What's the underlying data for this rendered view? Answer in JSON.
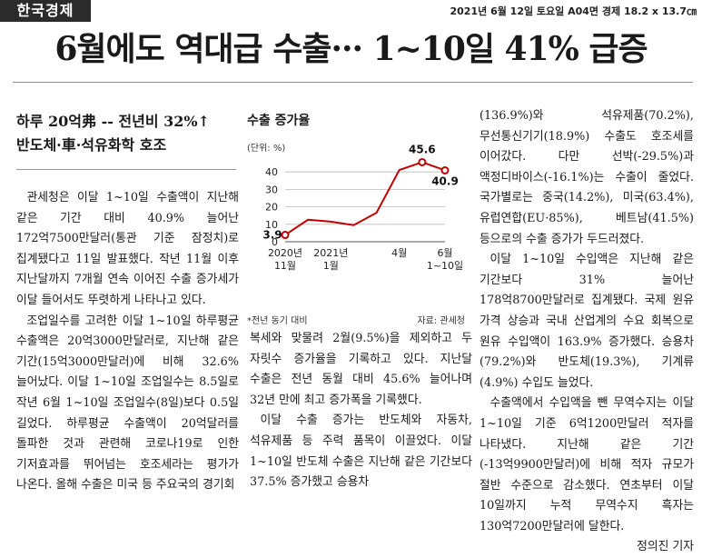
{
  "masthead": "한국경제",
  "meta": "2021년 6월 12일 토요일 A04면 경제 18.2 x 13.7㎝",
  "headline": "6월에도 역대급 수출··· 1~10일 41% 급증",
  "subheads": [
    "하루 20억弗 -- 전년비 32%↑",
    "반도체·車·석유화학 호조"
  ],
  "chart_data": {
    "type": "line",
    "title": "수출 증가율",
    "ylabel": "(단위: %)",
    "x": [
      "2020년 11월",
      "",
      "2021년 1월",
      "",
      "",
      "4월",
      "",
      "6월 1~10일"
    ],
    "tick_labels": [
      [
        "2020년",
        "11월"
      ],
      [
        "2021년",
        "1월"
      ],
      [
        "4월"
      ],
      [
        "6월",
        "1~10일"
      ]
    ],
    "values": [
      3.9,
      12.6,
      11.5,
      9.5,
      16.6,
      41.1,
      45.6,
      40.9
    ],
    "point_labels": [
      {
        "index": 0,
        "text": "3.9"
      },
      {
        "index": 6,
        "text": "45.6"
      },
      {
        "index": 7,
        "text": "40.9"
      }
    ],
    "yticks": [
      0,
      10,
      20,
      30,
      40
    ],
    "ylim": [
      0,
      50
    ],
    "grid": true,
    "line_color": "#c00000",
    "note": "*전년 동기 대비",
    "source": "자료: 관세청"
  },
  "col1": [
    "관세청은 이달 1~10일 수출액이 지난해 같은 기간 대비 40.9% 늘어난 172억7500만달러(통관 기준 잠정치)로 집계됐다고 11일 발표했다. 작년 11월 이후 지난달까지 7개월 연속 이어진 수출 증가세가 이달 들어서도 뚜렷하게 나타나고 있다.",
    "조업일수를 고려한 이달 1~10일 하루평균 수출액은 20억3000만달러로, 지난해 같은 기간(15억3000만달러)에 비해 32.6% 늘어났다. 이달 1~10일 조업일수는 8.5일로 작년 6월 1~10일 조업일수(8일)보다 0.5일 길었다. 하루평균 수출액이 20억달러를 돌파한 것과 관련해 코로나19로 인한 기저효과를 뛰어넘는 호조세라는 평가가 나온다. 올해 수출은 미국 등 주요국의 경기회"
  ],
  "col2": [
    "복세와 맞물려 2월(9.5%)을 제외하고 두 자릿수 증가율을 기록하고 있다. 지난달 수출은 전년 동월 대비 45.6% 늘어나며 32년 만에 최고 증가폭을 기록했다.",
    "이달 수출 증가는 반도체와 자동차, 석유제품 등 주력 품목이 이끌었다. 이달 1~10일 반도체 수출은 지난해 같은 기간보다 37.5% 증가했고 승용차"
  ],
  "col3": [
    "(136.9%)와 석유제품(70.2%), 무선통신기기(18.9%) 수출도 호조세를 이어갔다. 다만 선박(-29.5%)과 액정디바이스(-16.1%)는 수출이 줄었다. 국가별로는 중국(14.2%), 미국(63.4%), 유럽연합(EU·85%), 베트남(41.5%) 등으로의 수출 증가가 두드러졌다.",
    "이달 1~10일 수입액은 지난해 같은 기간보다 31% 늘어난 178억8700만달러로 집계됐다. 국제 원유 가격 상승과 국내 산업계의 수요 회복으로 원유 수입액이 163.9% 증가했다. 승용차(79.2%)와 반도체(19.3%), 기계류(4.9%) 수입도 늘었다.",
    "수출액에서 수입액을 뺀 무역수지는 이달 1~10일 기준 6억1200만달러 적자를 나타냈다. 지난해 같은 기간(-13억9900만달러)에 비해 적자 규모가 절반 수준으로 감소했다. 연초부터 이달 10일까지 누적 무역수지 흑자는 130억7200만달러에 달한다."
  ],
  "byline": "정의진 기자"
}
